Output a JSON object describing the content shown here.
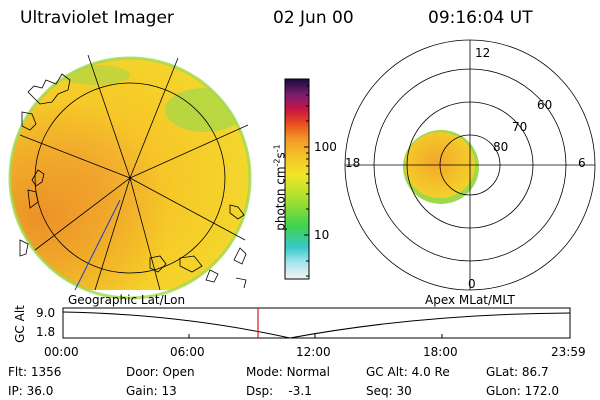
{
  "header": {
    "title": "Ultraviolet Imager",
    "date": "02 Jun 00",
    "time": "09:16:04 UT"
  },
  "colorbar": {
    "label": "photon cm",
    "label_sup1": "-2",
    "label_s": "s",
    "label_sup2": "-1",
    "ticks": [
      "100",
      "10"
    ]
  },
  "polar_plot": {
    "clock_labels": [
      "12",
      "18",
      "6",
      "0"
    ],
    "lat_labels": [
      "60",
      "70",
      "80"
    ]
  },
  "map_captions": {
    "left": "Geographic Lat/Lon",
    "right": "Apex MLat/MLT"
  },
  "altitude_plot": {
    "ylabel": "GC Alt",
    "y_ticks": [
      "9.0",
      "1.8"
    ],
    "x_ticks": [
      "00:00",
      "06:00",
      "12:00",
      "18:00",
      "23:59"
    ]
  },
  "status": {
    "flt_label": "Flt:",
    "flt_value": "1356",
    "ip_label": "IP:",
    "ip_value": "36.0",
    "door_label": "Door:",
    "door_value": "Open",
    "gain_label": "Gain:",
    "gain_value": "13",
    "mode_label": "Mode:",
    "mode_value": "Normal",
    "dsp_label": "Dsp:",
    "dsp_value": "-3.1",
    "gcalt_label": "GC Alt:",
    "gcalt_value": "4.0 Re",
    "seq_label": "Seq:",
    "seq_value": "30",
    "glat_label": "GLat:",
    "glat_value": "86.7",
    "glon_label": "GLon:",
    "glon_value": "172.0"
  },
  "colors": {
    "disk_fill": "#f6cf28",
    "disk_edge": "#96d84a",
    "oval_fill": "#f4b42a",
    "marker": "#d21e1e"
  }
}
